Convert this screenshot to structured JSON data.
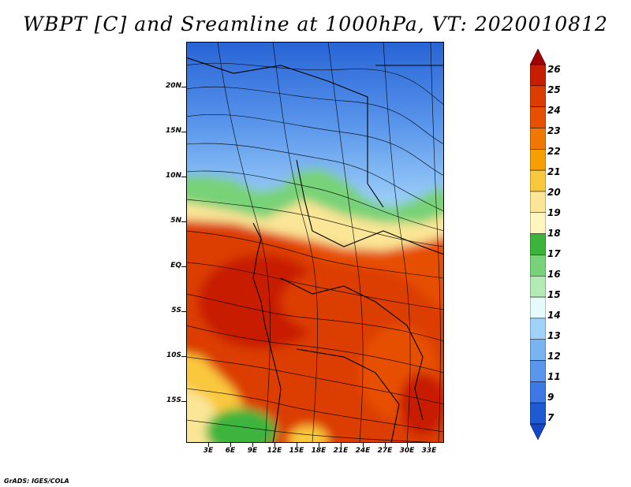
{
  "title": "WBPT [C] and Sreamline at 1000hPa, VT: 2020010812",
  "footer": "GrADS: IGES/COLA",
  "lat_labels": [
    "20N",
    "15N",
    "10N",
    "5N",
    "EQ",
    "5S",
    "10S",
    "15S"
  ],
  "lon_labels": [
    "3E",
    "6E",
    "9E",
    "12E",
    "15E",
    "18E",
    "21E",
    "24E",
    "27E",
    "30E",
    "33E"
  ],
  "colorbar": {
    "labels": [
      "26",
      "25",
      "24",
      "23",
      "22",
      "21",
      "20",
      "19",
      "18",
      "17",
      "16",
      "15",
      "14",
      "13",
      "12",
      "11",
      "9",
      "7"
    ],
    "colors": [
      "#a00000",
      "#c81e00",
      "#dc3c00",
      "#e65000",
      "#f07800",
      "#f5a000",
      "#fac83c",
      "#fae696",
      "#fff5be",
      "#3cb43c",
      "#78d278",
      "#b4ebb4",
      "#e6fafa",
      "#a0d2fa",
      "#78b4f0",
      "#5a96eb",
      "#3c78e6",
      "#1e5ad2",
      "#1446c8"
    ]
  }
}
